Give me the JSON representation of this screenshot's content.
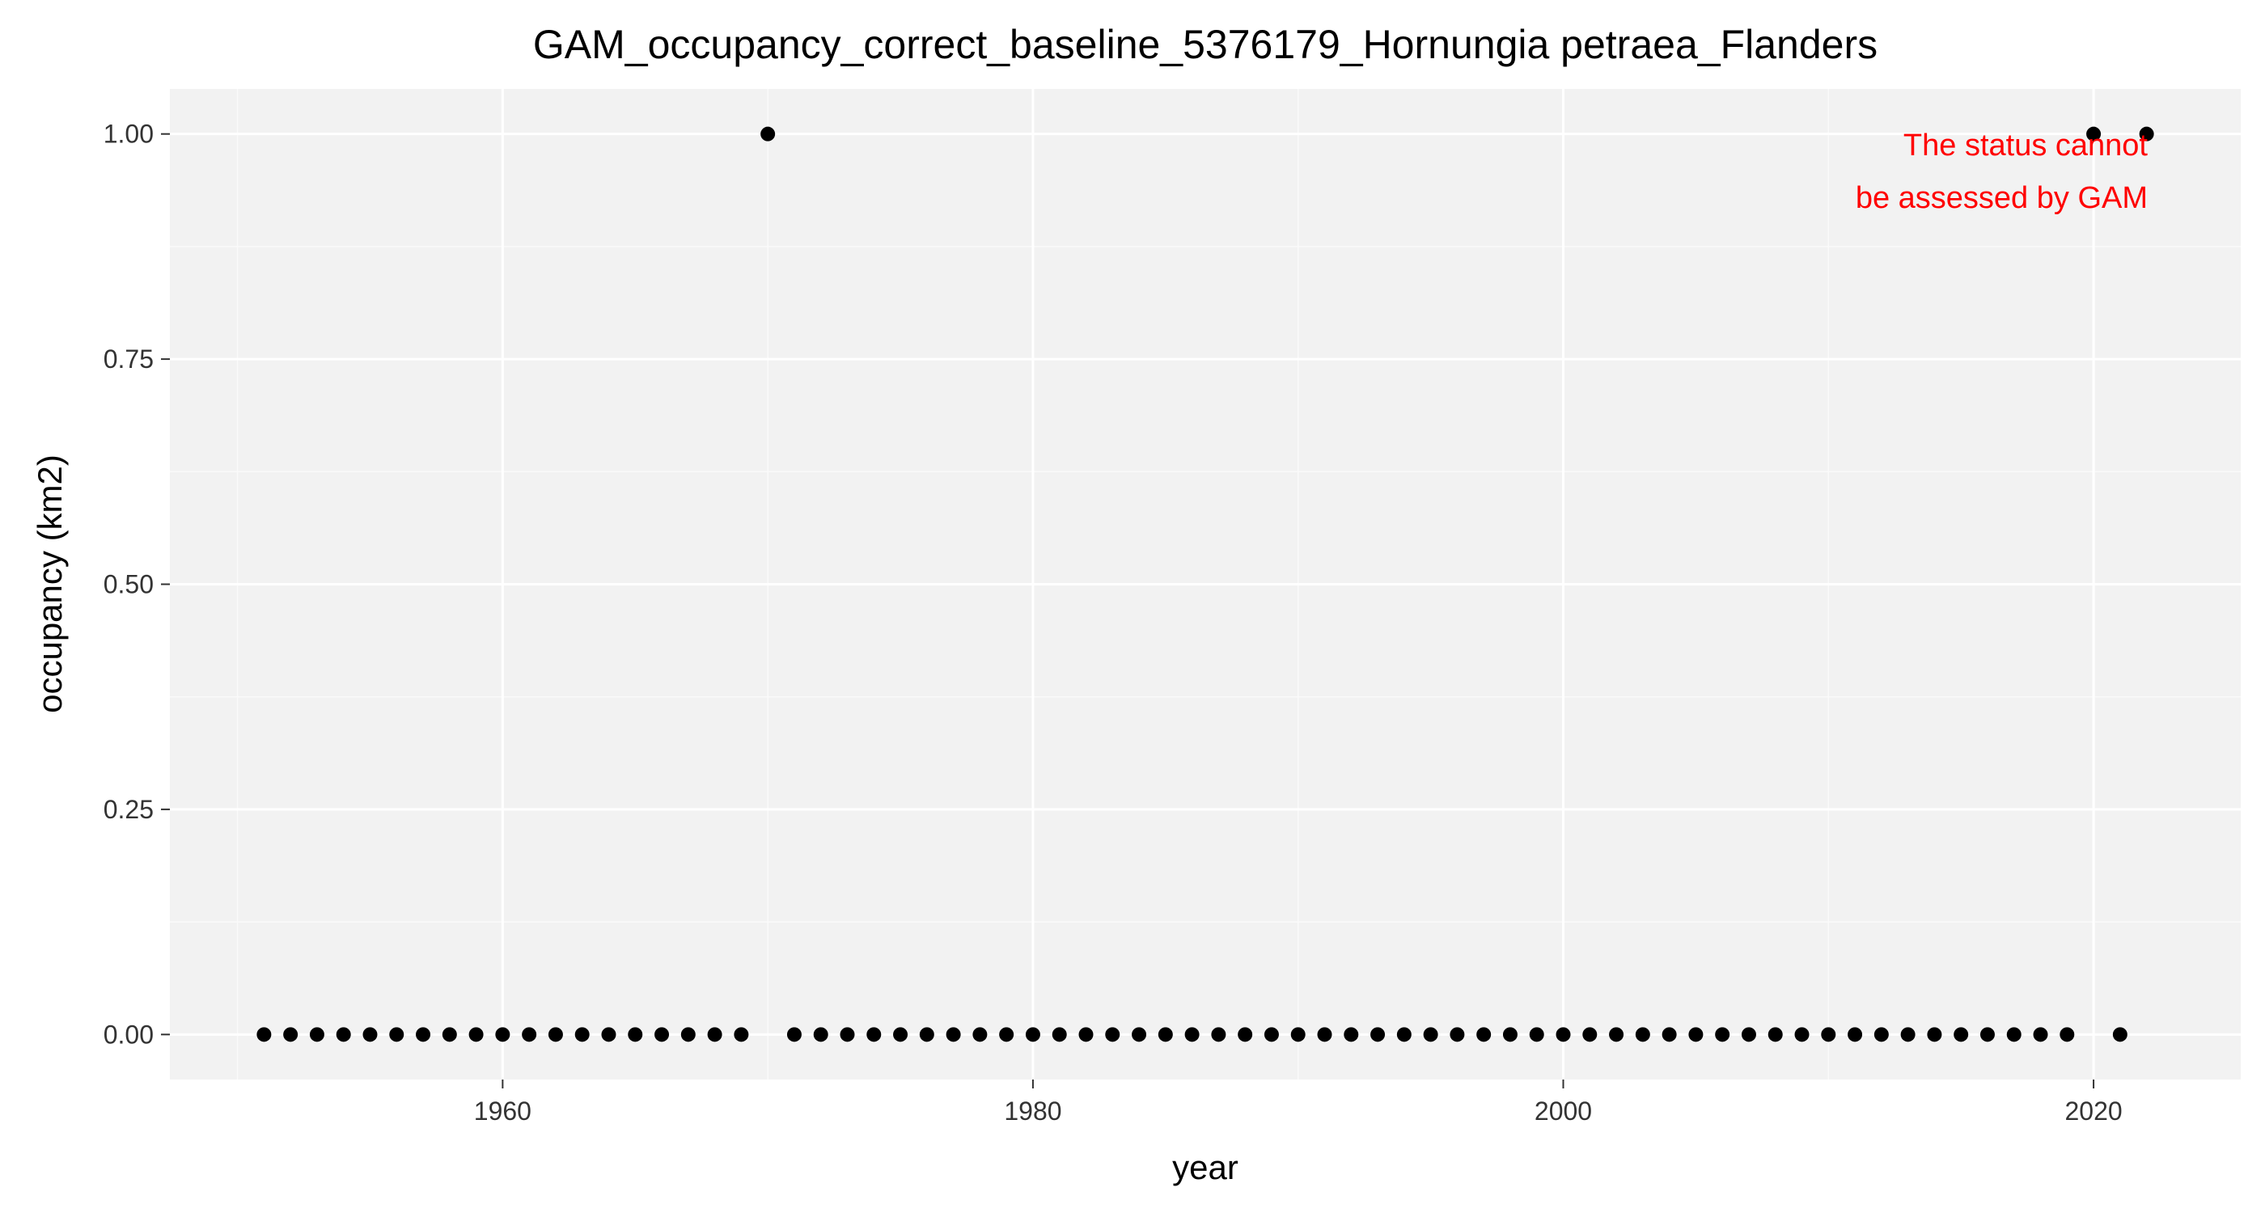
{
  "chart_data": {
    "type": "scatter",
    "title": "GAM_occupancy_correct_baseline_5376179_Hornungia petraea_Flanders",
    "xlabel": "year",
    "ylabel": "occupancy (km2)",
    "xlim": [
      1947.45,
      2025.55
    ],
    "ylim": [
      -0.05,
      1.05
    ],
    "x_ticks": [
      1960,
      1980,
      2000,
      2020
    ],
    "x_tick_labels": [
      "1960",
      "1980",
      "2000",
      "2020"
    ],
    "x_minor_ticks": [
      1950,
      1970,
      1990,
      2010
    ],
    "y_ticks": [
      0,
      0.25,
      0.5,
      0.75,
      1.0
    ],
    "y_tick_labels": [
      "0.00",
      "0.25",
      "0.50",
      "0.75",
      "1.00"
    ],
    "y_minor_ticks": [
      0.125,
      0.375,
      0.625,
      0.875
    ],
    "grid": true,
    "legend": "none",
    "point_color": "#000000",
    "panel_color": "#f2f2f2",
    "annotation": {
      "lines": [
        "The status cannot",
        "be assessed by GAM"
      ],
      "color": "#ff0000"
    },
    "series": [
      {
        "x": [
          1951,
          1952,
          1953,
          1954,
          1955,
          1956,
          1957,
          1958,
          1959,
          1960,
          1961,
          1962,
          1963,
          1964,
          1965,
          1966,
          1967,
          1968,
          1969,
          1970,
          1971,
          1972,
          1973,
          1974,
          1975,
          1976,
          1977,
          1978,
          1979,
          1980,
          1981,
          1982,
          1983,
          1984,
          1985,
          1986,
          1987,
          1988,
          1989,
          1990,
          1991,
          1992,
          1993,
          1994,
          1995,
          1996,
          1997,
          1998,
          1999,
          2000,
          2001,
          2002,
          2003,
          2004,
          2005,
          2006,
          2007,
          2008,
          2009,
          2010,
          2011,
          2012,
          2013,
          2014,
          2015,
          2016,
          2017,
          2018,
          2019,
          2020,
          2021,
          2022
        ],
        "y": [
          0,
          0,
          0,
          0,
          0,
          0,
          0,
          0,
          0,
          0,
          0,
          0,
          0,
          0,
          0,
          0,
          0,
          0,
          0,
          1,
          0,
          0,
          0,
          0,
          0,
          0,
          0,
          0,
          0,
          0,
          0,
          0,
          0,
          0,
          0,
          0,
          0,
          0,
          0,
          0,
          0,
          0,
          0,
          0,
          0,
          0,
          0,
          0,
          0,
          0,
          0,
          0,
          0,
          0,
          0,
          0,
          0,
          0,
          0,
          0,
          0,
          0,
          0,
          0,
          0,
          0,
          0,
          0,
          0,
          1,
          0,
          1
        ]
      }
    ]
  }
}
